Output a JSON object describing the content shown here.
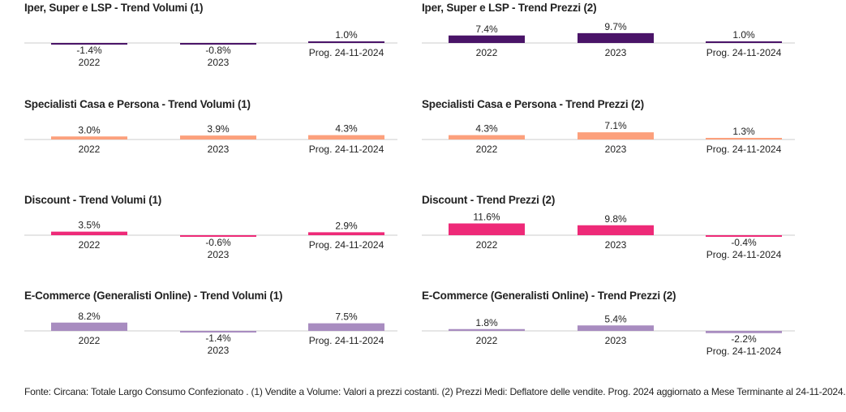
{
  "chart_data": [
    {
      "type": "bar",
      "title": "Iper, Super e LSP - Trend Volumi (1)",
      "categories": [
        "2022",
        "2023",
        "Prog. 24-11-2024"
      ],
      "values": [
        -1.4,
        -0.8,
        1.0
      ],
      "value_labels": [
        "-1.4%",
        "-0.8%",
        "1.0%"
      ],
      "color": "#4a1468"
    },
    {
      "type": "bar",
      "title": "Iper, Super e LSP - Trend Prezzi (2)",
      "categories": [
        "2022",
        "2023",
        "Prog. 24-11-2024"
      ],
      "values": [
        7.4,
        9.7,
        1.0
      ],
      "value_labels": [
        "7.4%",
        "9.7%",
        "1.0%"
      ],
      "color": "#4a1468"
    },
    {
      "type": "bar",
      "title": "Specialisti Casa e Persona - Trend Volumi (1)",
      "categories": [
        "2022",
        "2023",
        "Prog. 24-11-2024"
      ],
      "values": [
        3.0,
        3.9,
        4.3
      ],
      "value_labels": [
        "3.0%",
        "3.9%",
        "4.3%"
      ],
      "color": "#fca07c"
    },
    {
      "type": "bar",
      "title": "Specialisti Casa e Persona - Trend Prezzi (2)",
      "categories": [
        "2022",
        "2023",
        "Prog. 24-11-2024"
      ],
      "values": [
        4.3,
        7.1,
        1.3
      ],
      "value_labels": [
        "4.3%",
        "7.1%",
        "1.3%"
      ],
      "color": "#fca07c"
    },
    {
      "type": "bar",
      "title": "Discount - Trend Volumi (1)",
      "categories": [
        "2022",
        "2023",
        "Prog. 24-11-2024"
      ],
      "values": [
        3.5,
        -0.6,
        2.9
      ],
      "value_labels": [
        "3.5%",
        "-0.6%",
        "2.9%"
      ],
      "color": "#ee2a78"
    },
    {
      "type": "bar",
      "title": "Discount - Trend Prezzi (2)",
      "categories": [
        "2022",
        "2023",
        "Prog. 24-11-2024"
      ],
      "values": [
        11.6,
        9.8,
        -0.4
      ],
      "value_labels": [
        "11.6%",
        "9.8%",
        "-0.4%"
      ],
      "color": "#ee2a78"
    },
    {
      "type": "bar",
      "title": "E-Commerce (Generalisti Online) - Trend Volumi (1)",
      "categories": [
        "2022",
        "2023",
        "Prog. 24-11-2024"
      ],
      "values": [
        8.2,
        -1.4,
        7.5
      ],
      "value_labels": [
        "8.2%",
        "-1.4%",
        "7.5%"
      ],
      "color": "#a88cc0"
    },
    {
      "type": "bar",
      "title": "E-Commerce (Generalisti Online) - Trend Prezzi (2)",
      "categories": [
        "2022",
        "2023",
        "Prog. 24-11-2024"
      ],
      "values": [
        1.8,
        5.4,
        -2.2
      ],
      "value_labels": [
        "1.8%",
        "5.4%",
        "-2.2%"
      ],
      "color": "#a88cc0"
    }
  ],
  "footnote": "Fonte: Circana: Totale Largo Consumo Confezionato . (1) Vendite a Volume: Valori a prezzi costanti. (2) Prezzi Medi: Deflatore delle vendite. Prog. 2024 aggiornato a Mese Terminante al 24-11-2024."
}
